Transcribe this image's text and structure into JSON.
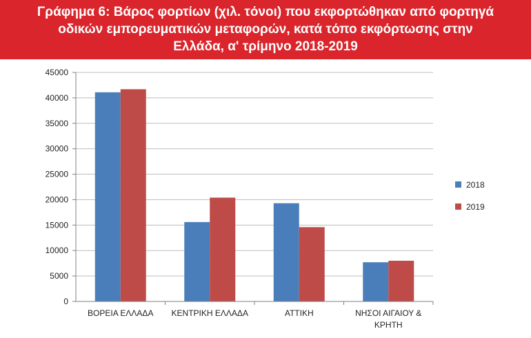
{
  "title_lines": [
    "Γράφημα 6: Βάρος φορτίων (χιλ. τόνοι) που εκφορτώθηκαν από φορτηγά",
    "οδικών εμπορευματικών μεταφορών, κατά τόπο εκφόρτωσης στην",
    "Ελλάδα, α' τρίμηνο 2018-2019"
  ],
  "chart_data": {
    "type": "bar",
    "title": "Γράφημα 6: Βάρος φορτίων (χιλ. τόνοι) που εκφορτώθηκαν από φορτηγά οδικών εμπορευματικών μεταφορών, κατά τόπο εκφόρτωσης στην Ελλάδα, α' τρίμηνο 2018-2019",
    "categories": [
      "ΒΟΡΕΙΑ ΕΛΛΑΔΑ",
      "ΚΕΝΤΡΙΚΗ ΕΛΛΑΔΑ",
      "ΑΤΤΙΚΗ",
      "ΝΗΣΟΙ ΑΙΓΑΙΟΥ & ΚΡΗΤΗ"
    ],
    "category_lines": [
      [
        "ΒΟΡΕΙΑ ΕΛΛΑΔΑ"
      ],
      [
        "ΚΕΝΤΡΙΚΗ ΕΛΛΑΔΑ"
      ],
      [
        "ΑΤΤΙΚΗ"
      ],
      [
        "ΝΗΣΟΙ ΑΙΓΑΙΟΥ &",
        "ΚΡΗΤΗ"
      ]
    ],
    "series": [
      {
        "name": "2018",
        "color": "#4a7ebb",
        "values": [
          41100,
          15600,
          19300,
          7700
        ]
      },
      {
        "name": "2019",
        "color": "#be4b48",
        "values": [
          41700,
          20400,
          14600,
          8000
        ]
      }
    ],
    "ylim": [
      0,
      45000
    ],
    "yticks": [
      0,
      5000,
      10000,
      15000,
      20000,
      25000,
      30000,
      35000,
      40000,
      45000
    ],
    "grid": true,
    "legend_position": "right"
  }
}
